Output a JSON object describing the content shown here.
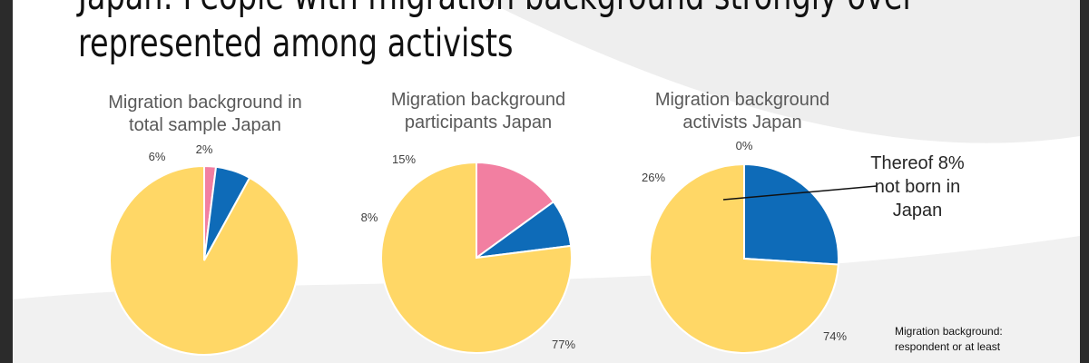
{
  "title_lines": [
    "Japan: People with migration background strongly over",
    "represented among activists"
  ],
  "colors": {
    "none": "#FFD766",
    "blue": "#0E6BB8",
    "pink": "#F27FA1"
  },
  "chart_data": [
    {
      "type": "pie",
      "title": "Migration background in total sample Japan",
      "title_lines": [
        "Migration background in",
        "total sample Japan"
      ],
      "slices": [
        {
          "label": "2%",
          "value": 2,
          "color": "#F27FA1"
        },
        {
          "label": "6%",
          "value": 6,
          "color": "#0E6BB8"
        },
        {
          "label": "",
          "value": 92,
          "color": "#FFD766"
        }
      ]
    },
    {
      "type": "pie",
      "title": "Migration background participants Japan",
      "title_lines": [
        "Migration background",
        "participants Japan"
      ],
      "slices": [
        {
          "label": "15%",
          "value": 15,
          "color": "#F27FA1"
        },
        {
          "label": "8%",
          "value": 8,
          "color": "#0E6BB8"
        },
        {
          "label": "77%",
          "value": 77,
          "color": "#FFD766"
        }
      ]
    },
    {
      "type": "pie",
      "title": "Migration background activists Japan",
      "title_lines": [
        "Migration background",
        "activists Japan"
      ],
      "slices": [
        {
          "label": "0%",
          "value": 0,
          "color": "#F27FA1"
        },
        {
          "label": "26%",
          "value": 26,
          "color": "#0E6BB8"
        },
        {
          "label": "74%",
          "value": 74,
          "color": "#FFD766"
        }
      ]
    }
  ],
  "annotation_lines": [
    "Thereof 8%",
    "not born in",
    "Japan"
  ],
  "footnote_lines": [
    "Migration background:",
    "respondent or at least"
  ]
}
